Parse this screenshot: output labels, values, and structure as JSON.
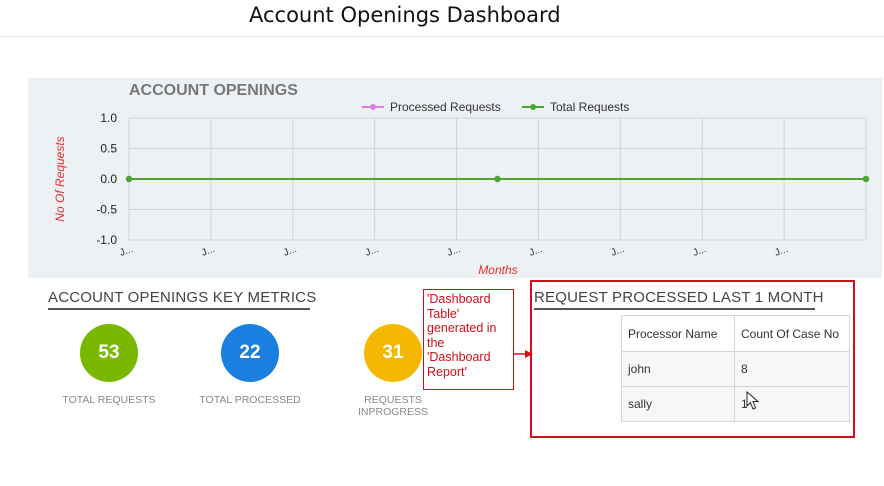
{
  "page": {
    "title": "Account Openings Dashboard"
  },
  "chart_section": {
    "chart_data": {
      "type": "line",
      "title": "ACCOUNT OPENINGS",
      "xlabel": "Months",
      "ylabel": "No Of Requests",
      "x_tick_labels": [
        "J...",
        "J...",
        "J...",
        "J...",
        "J...",
        "J...",
        "J...",
        "J...",
        "J..."
      ],
      "y_ticks": [
        "1.0",
        "0.5",
        "0.0",
        "-0.5",
        "-1.0"
      ],
      "ylim": [
        -1.0,
        1.0
      ],
      "grid": true,
      "legend_position": "top-center",
      "series": [
        {
          "name": "Processed Requests",
          "color": "#e07fe8",
          "values": [
            0,
            0,
            0
          ]
        },
        {
          "name": "Total Requests",
          "color": "#4aa832",
          "values": [
            0,
            0,
            0
          ]
        }
      ]
    }
  },
  "metrics": {
    "title": "ACCOUNT OPENINGS KEY METRICS",
    "items": [
      {
        "value": "53",
        "label": "TOTAL REQUESTS",
        "color": "#7ab800"
      },
      {
        "value": "22",
        "label": "TOTAL PROCESSED",
        "color": "#1a7fe0"
      },
      {
        "value": "31",
        "label": "REQUESTS INPROGRESS",
        "color": "#f5b800"
      }
    ]
  },
  "requests": {
    "title": "REQUEST PROCESSED LAST 1 MONTH",
    "columns": [
      "Processor Name",
      "Count Of Case No"
    ],
    "rows": [
      [
        "john",
        "8"
      ],
      [
        "sally",
        "1"
      ]
    ]
  },
  "annotation": {
    "text": "'Dashboard Table' generated in the 'Dashboard Report'",
    "color": "#d0101b"
  }
}
